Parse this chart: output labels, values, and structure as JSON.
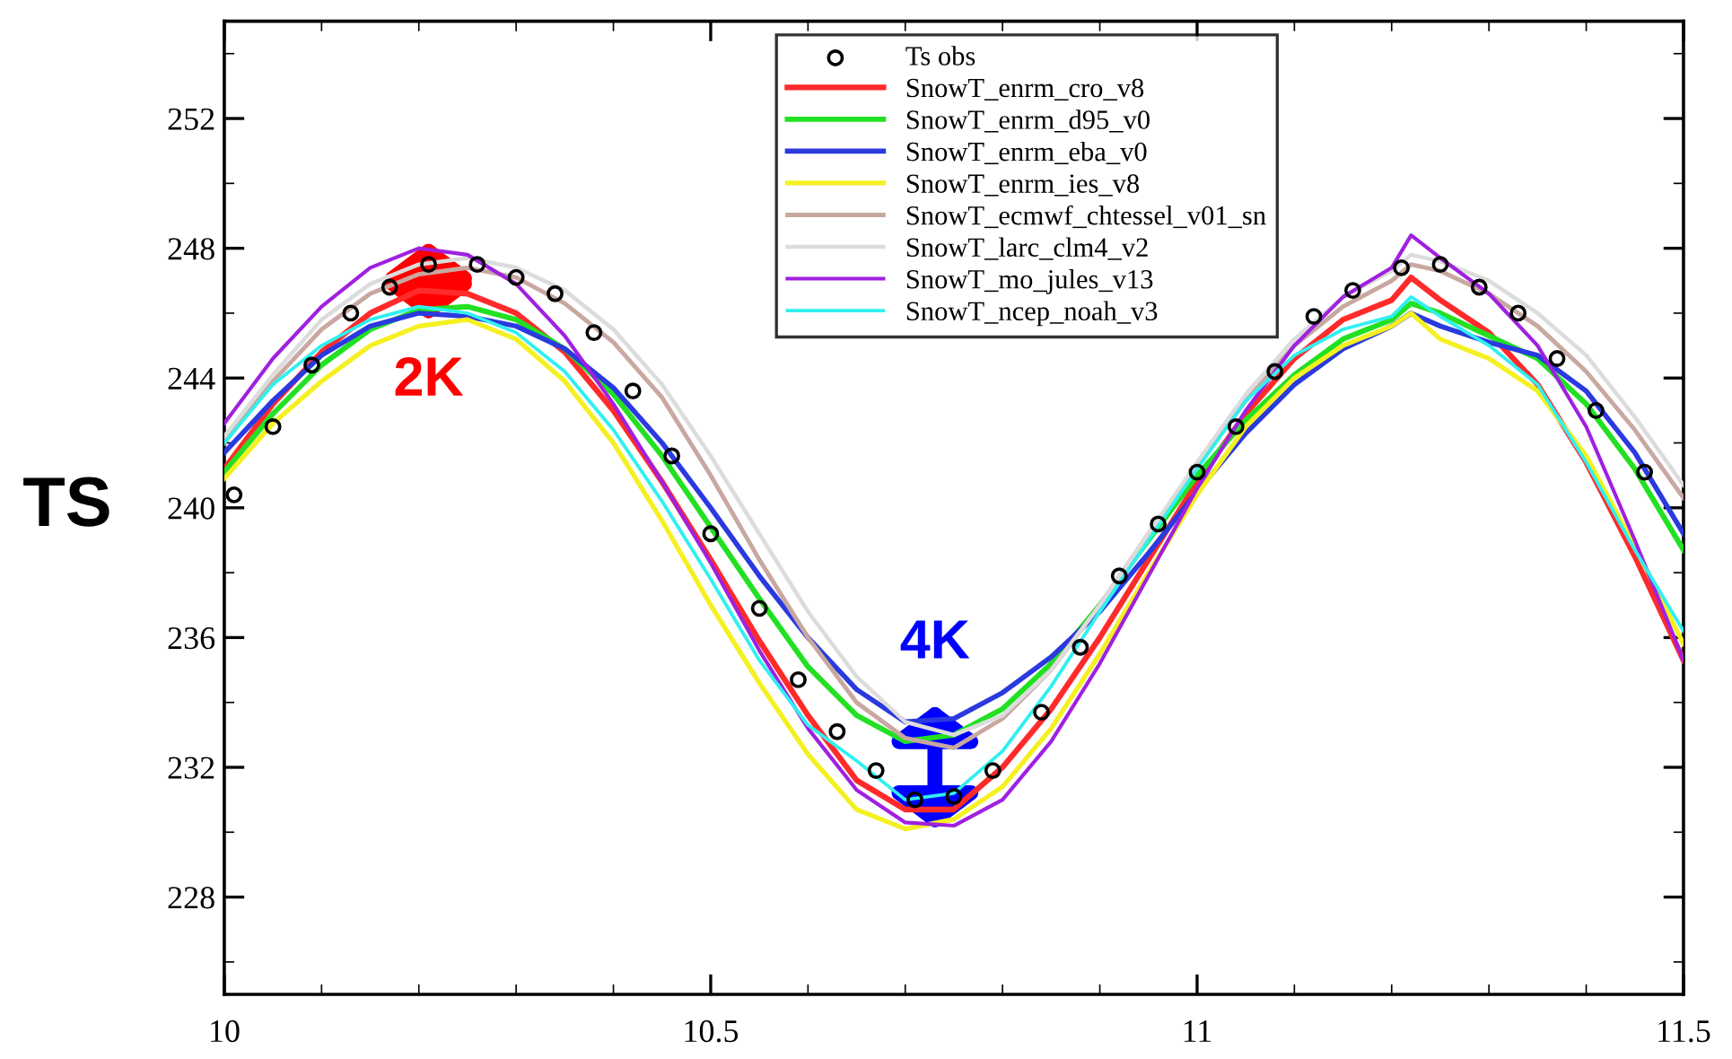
{
  "chart_data": {
    "type": "line",
    "ylabel": "TS",
    "x": [
      10.0,
      10.05,
      10.1,
      10.15,
      10.2,
      10.25,
      10.3,
      10.35,
      10.4,
      10.45,
      10.5,
      10.55,
      10.6,
      10.65,
      10.7,
      10.75,
      10.8,
      10.85,
      10.9,
      10.95,
      11.0,
      11.05,
      11.1,
      11.15,
      11.2,
      11.22,
      11.25,
      11.3,
      11.35,
      11.4,
      11.45,
      11.5
    ],
    "series": [
      {
        "name": "Ts obs",
        "type": "scatter",
        "marker": "circle",
        "color": "#000000",
        "x": [
          10.01,
          10.05,
          10.09,
          10.13,
          10.17,
          10.21,
          10.26,
          10.3,
          10.34,
          10.38,
          10.42,
          10.46,
          10.5,
          10.55,
          10.59,
          10.63,
          10.67,
          10.71,
          10.75,
          10.79,
          10.84,
          10.88,
          10.92,
          10.96,
          11.0,
          11.04,
          11.08,
          11.12,
          11.16,
          11.21,
          11.25,
          11.29,
          11.33,
          11.37,
          11.41,
          11.46
        ],
        "values": [
          240.4,
          242.5,
          244.4,
          246.0,
          246.8,
          247.5,
          247.5,
          247.1,
          246.6,
          245.4,
          243.6,
          241.6,
          239.2,
          236.9,
          234.7,
          233.1,
          231.9,
          231.0,
          231.1,
          231.9,
          233.7,
          235.7,
          237.9,
          239.5,
          241.1,
          242.5,
          244.2,
          245.9,
          246.7,
          247.4,
          247.5,
          246.8,
          246.0,
          244.6,
          243.0,
          241.1
        ]
      },
      {
        "name": "SnowT_enrm_cro_v8",
        "color": "#ff2a2a",
        "values": [
          241.2,
          243.2,
          244.8,
          246.0,
          246.7,
          246.6,
          246.0,
          244.8,
          243.0,
          240.8,
          238.4,
          235.9,
          233.6,
          231.6,
          230.7,
          230.7,
          232.0,
          233.8,
          236.0,
          238.4,
          240.8,
          242.9,
          244.6,
          245.8,
          246.4,
          247.1,
          246.4,
          245.4,
          243.8,
          241.4,
          238.5,
          235.3
        ]
      },
      {
        "name": "SnowT_enrm_d95_v0",
        "color": "#22e022",
        "values": [
          241.1,
          242.9,
          244.4,
          245.5,
          246.1,
          246.2,
          245.8,
          244.9,
          243.5,
          241.6,
          239.4,
          237.2,
          235.1,
          233.6,
          232.8,
          233.0,
          233.8,
          235.2,
          237.0,
          239.0,
          241.0,
          242.7,
          244.1,
          245.2,
          245.8,
          246.3,
          246.0,
          245.3,
          244.6,
          243.2,
          241.2,
          238.7
        ]
      },
      {
        "name": "SnowT_enrm_eba_v0",
        "color": "#2a3adf",
        "values": [
          241.7,
          243.3,
          244.7,
          245.6,
          246.0,
          245.9,
          245.6,
          244.9,
          243.7,
          242.0,
          240.0,
          237.9,
          236.0,
          234.4,
          233.4,
          233.5,
          234.3,
          235.4,
          236.8,
          238.6,
          240.5,
          242.3,
          243.8,
          244.9,
          245.6,
          246.0,
          245.6,
          245.1,
          244.7,
          243.6,
          241.7,
          239.2
        ]
      },
      {
        "name": "SnowT_enrm_ies_v8",
        "color": "#f5f020",
        "values": [
          240.9,
          242.6,
          243.9,
          245.0,
          245.6,
          245.8,
          245.2,
          243.9,
          242.0,
          239.6,
          237.0,
          234.6,
          232.4,
          230.7,
          230.1,
          230.4,
          231.4,
          233.2,
          235.5,
          238.0,
          240.4,
          242.5,
          244.0,
          245.0,
          245.6,
          246.0,
          245.2,
          244.6,
          243.6,
          241.6,
          238.8,
          235.8
        ]
      },
      {
        "name": "SnowT_ecmwf_chtessel_v01_sn",
        "color": "#c8a8a0",
        "values": [
          242.0,
          243.9,
          245.5,
          246.6,
          247.2,
          247.4,
          247.1,
          246.3,
          245.1,
          243.4,
          241.0,
          238.4,
          236.0,
          234.0,
          232.9,
          232.6,
          233.5,
          235.0,
          237.0,
          239.2,
          241.3,
          243.3,
          245.0,
          246.2,
          247.0,
          247.5,
          247.3,
          246.6,
          245.6,
          244.2,
          242.4,
          240.3
        ]
      },
      {
        "name": "SnowT_larc_clm4_v2",
        "color": "#dcdcdc",
        "values": [
          242.2,
          244.1,
          245.8,
          246.9,
          247.5,
          247.7,
          247.4,
          246.7,
          245.5,
          243.8,
          241.6,
          239.2,
          236.8,
          234.8,
          233.4,
          233.0,
          233.6,
          235.0,
          237.0,
          239.2,
          241.4,
          243.5,
          245.2,
          246.5,
          247.3,
          247.8,
          247.6,
          247.0,
          246.0,
          244.7,
          242.8,
          240.7
        ]
      },
      {
        "name": "SnowT_mo_jules_v13",
        "color": "#a020e0",
        "values": [
          242.6,
          244.6,
          246.2,
          247.4,
          248.0,
          247.8,
          246.9,
          245.3,
          243.2,
          240.8,
          238.3,
          235.6,
          233.2,
          231.3,
          230.3,
          230.2,
          231.0,
          232.8,
          235.2,
          237.9,
          240.6,
          243.0,
          245.0,
          246.5,
          247.4,
          248.4,
          247.7,
          246.6,
          245.0,
          242.5,
          239.0,
          235.3
        ]
      },
      {
        "name": "SnowT_ncep_noah_v3",
        "color": "#30f0f0",
        "values": [
          242.0,
          243.8,
          245.0,
          245.8,
          246.2,
          246.0,
          245.4,
          244.2,
          242.4,
          240.2,
          237.8,
          235.3,
          233.3,
          232.2,
          231.0,
          231.2,
          232.5,
          234.5,
          236.8,
          239.0,
          241.2,
          243.3,
          244.7,
          245.5,
          245.9,
          246.5,
          245.9,
          245.0,
          243.8,
          241.4,
          238.7,
          236.2
        ]
      }
    ],
    "annotations": [
      "2K",
      "4K"
    ],
    "xlim": [
      10,
      11.5
    ],
    "xticks": [
      10,
      10.5,
      11,
      11.5
    ],
    "ylim": [
      225,
      255
    ],
    "yticks": [
      228,
      232,
      236,
      240,
      244,
      248,
      252
    ],
    "grid": false,
    "legend": "top"
  }
}
